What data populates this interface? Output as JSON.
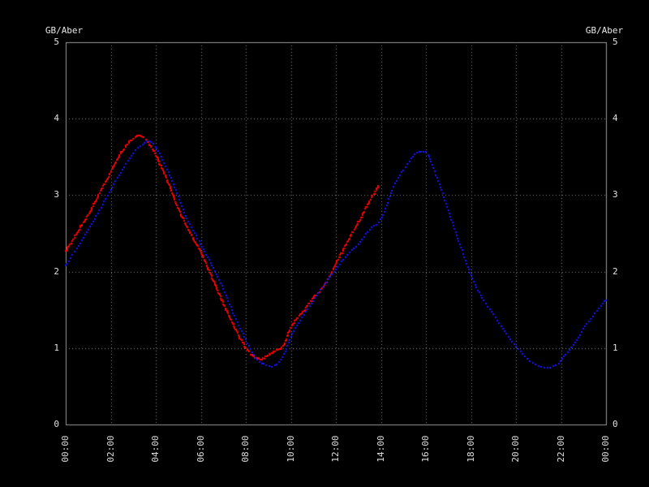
{
  "chart_data": {
    "type": "line",
    "station_label": "GB/Aber",
    "background": "#000000",
    "colors": {
      "frame": "#9a9a9a",
      "grid": "#8a8a8a",
      "tick_labels": "#e0e0e0",
      "station_label": "#e8e8e8",
      "observed": "#ff0000",
      "predicted": "#1414ff"
    },
    "xlim_hours": [
      0,
      24
    ],
    "ylim": [
      0,
      5
    ],
    "y_ticks": [
      {
        "value": 0,
        "label": "0"
      },
      {
        "value": 1,
        "label": "1"
      },
      {
        "value": 2,
        "label": "2"
      },
      {
        "value": 3,
        "label": "3"
      },
      {
        "value": 4,
        "label": "4"
      },
      {
        "value": 5,
        "label": "5"
      }
    ],
    "x_ticks": [
      {
        "hour": 0,
        "label": "00:00"
      },
      {
        "hour": 2,
        "label": "02:00"
      },
      {
        "hour": 4,
        "label": "04:00"
      },
      {
        "hour": 6,
        "label": "06:00"
      },
      {
        "hour": 8,
        "label": "08:00"
      },
      {
        "hour": 10,
        "label": "10:00"
      },
      {
        "hour": 12,
        "label": "12:00"
      },
      {
        "hour": 14,
        "label": "14:00"
      },
      {
        "hour": 16,
        "label": "16:00"
      },
      {
        "hour": 18,
        "label": "18:00"
      },
      {
        "hour": 20,
        "label": "20:00"
      },
      {
        "hour": 22,
        "label": "22:00"
      },
      {
        "hour": 24,
        "label": "00:00"
      }
    ],
    "grid": {
      "vertical_hours": [
        2,
        4,
        6,
        8,
        10,
        12,
        14,
        16,
        18,
        20,
        22
      ],
      "horizontal_values": [
        1,
        2,
        3,
        4
      ],
      "style": "dotted"
    },
    "series": [
      {
        "name": "observed",
        "style": "solid-noisy",
        "color_key": "observed",
        "points": [
          [
            0,
            2.27
          ],
          [
            0.5,
            2.5
          ],
          [
            1,
            2.75
          ],
          [
            1.5,
            3.02
          ],
          [
            2,
            3.3
          ],
          [
            2.5,
            3.57
          ],
          [
            3,
            3.74
          ],
          [
            3.25,
            3.78
          ],
          [
            3.6,
            3.71
          ],
          [
            4,
            3.52
          ],
          [
            4.5,
            3.2
          ],
          [
            5,
            2.82
          ],
          [
            5.5,
            2.52
          ],
          [
            6,
            2.25
          ],
          [
            6.5,
            1.92
          ],
          [
            7,
            1.58
          ],
          [
            7.5,
            1.27
          ],
          [
            8,
            1.0
          ],
          [
            8.4,
            0.88
          ],
          [
            8.7,
            0.86
          ],
          [
            9,
            0.9
          ],
          [
            9.3,
            0.96
          ],
          [
            9.7,
            1.04
          ],
          [
            10,
            1.27
          ],
          [
            10.5,
            1.46
          ],
          [
            11,
            1.65
          ],
          [
            11.5,
            1.82
          ],
          [
            12,
            2.1
          ],
          [
            12.5,
            2.38
          ],
          [
            13,
            2.64
          ],
          [
            13.5,
            2.92
          ],
          [
            13.9,
            3.12
          ]
        ]
      },
      {
        "name": "predicted",
        "style": "dotted",
        "color_key": "predicted",
        "points": [
          [
            0,
            2.08
          ],
          [
            0.5,
            2.3
          ],
          [
            1,
            2.55
          ],
          [
            1.5,
            2.8
          ],
          [
            2,
            3.07
          ],
          [
            2.5,
            3.33
          ],
          [
            3,
            3.55
          ],
          [
            3.5,
            3.68
          ],
          [
            3.7,
            3.7
          ],
          [
            4,
            3.63
          ],
          [
            4.5,
            3.34
          ],
          [
            5,
            2.98
          ],
          [
            5.5,
            2.62
          ],
          [
            6,
            2.36
          ],
          [
            6.5,
            2.08
          ],
          [
            7,
            1.77
          ],
          [
            7.5,
            1.42
          ],
          [
            8,
            1.11
          ],
          [
            8.5,
            0.85
          ],
          [
            8.9,
            0.78
          ],
          [
            9.3,
            0.77
          ],
          [
            9.7,
            0.92
          ],
          [
            10,
            1.15
          ],
          [
            10.5,
            1.4
          ],
          [
            11,
            1.62
          ],
          [
            11.5,
            1.83
          ],
          [
            12,
            2.03
          ],
          [
            12.5,
            2.22
          ],
          [
            13,
            2.36
          ],
          [
            13.5,
            2.55
          ],
          [
            14,
            2.68
          ],
          [
            14.5,
            3.06
          ],
          [
            15,
            3.33
          ],
          [
            15.5,
            3.53
          ],
          [
            15.8,
            3.57
          ],
          [
            16.1,
            3.53
          ],
          [
            16.5,
            3.22
          ],
          [
            17,
            2.8
          ],
          [
            17.5,
            2.36
          ],
          [
            18,
            1.95
          ],
          [
            18.5,
            1.66
          ],
          [
            19,
            1.44
          ],
          [
            19.5,
            1.22
          ],
          [
            20,
            1.02
          ],
          [
            20.5,
            0.86
          ],
          [
            21,
            0.77
          ],
          [
            21.4,
            0.74
          ],
          [
            21.9,
            0.8
          ],
          [
            22.3,
            0.95
          ],
          [
            22.7,
            1.1
          ],
          [
            23,
            1.25
          ],
          [
            23.5,
            1.45
          ],
          [
            24,
            1.63
          ]
        ]
      }
    ]
  }
}
